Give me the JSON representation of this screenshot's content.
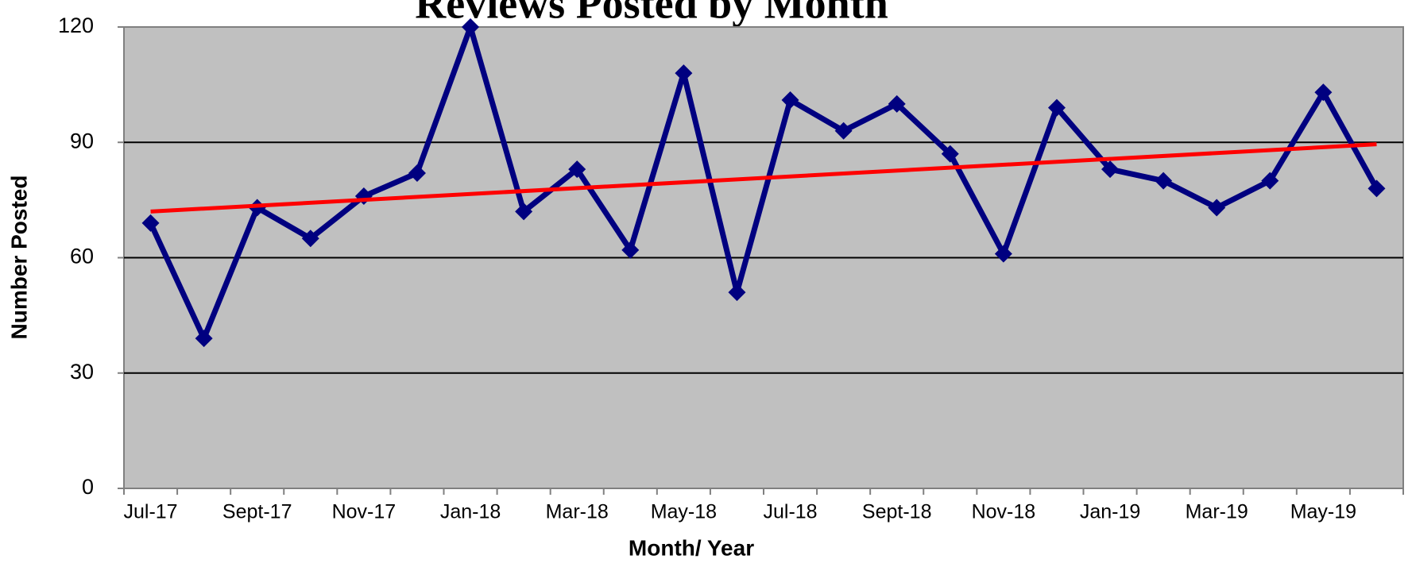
{
  "chart_data": {
    "type": "line",
    "title": "Reviews Posted by Month",
    "x_label": "Month/ Year",
    "y_label": "Number Posted",
    "categories": [
      "Jul-17",
      null,
      "Sept-17",
      null,
      "Nov-17",
      null,
      "Jan-18",
      null,
      "Mar-18",
      null,
      "May-18",
      null,
      "Jul-18",
      null,
      "Sept-18",
      null,
      "Nov-18",
      null,
      "Jan-19",
      null,
      "Mar-19",
      null,
      "May-19",
      null
    ],
    "series": [
      {
        "name": "Reviews Posted",
        "color": "#000080",
        "values": [
          69,
          39,
          73,
          65,
          76,
          82,
          120,
          72,
          83,
          62,
          108,
          51,
          101,
          93,
          100,
          87,
          61,
          99,
          83,
          80,
          73,
          80,
          103,
          78
        ]
      }
    ],
    "trendline": {
      "color": "#ff0000",
      "values": [
        72,
        89.5
      ]
    },
    "ylim": [
      0,
      120
    ],
    "yticks": [
      0,
      30,
      60,
      90,
      120
    ],
    "grid": true,
    "plot_background": "#c0c0c0"
  }
}
